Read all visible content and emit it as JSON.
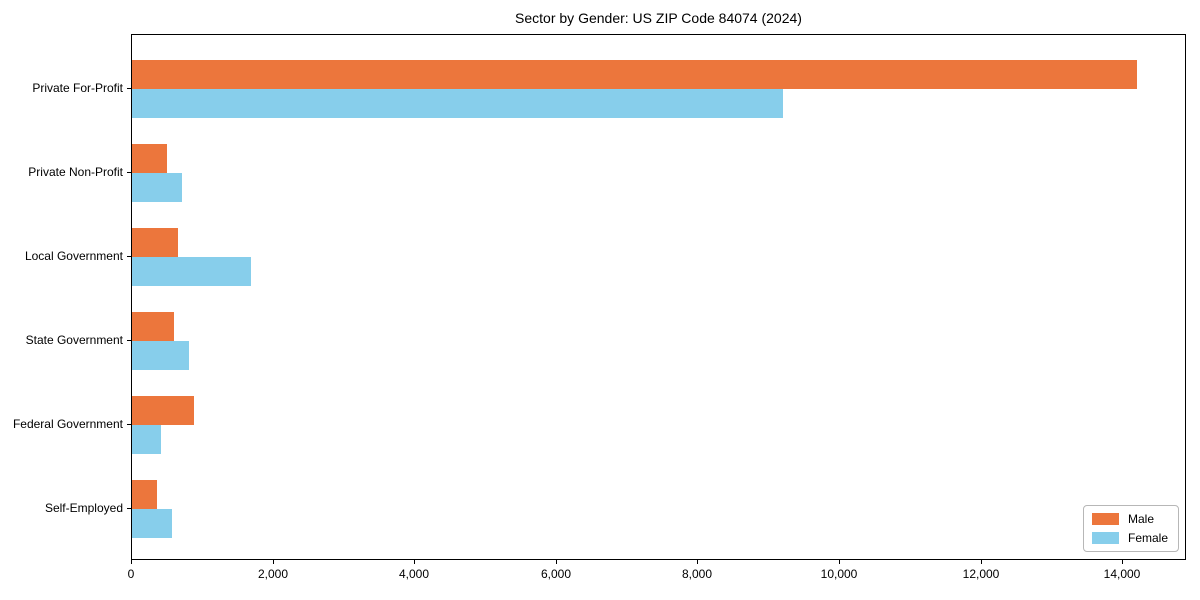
{
  "chart_data": {
    "type": "bar",
    "orientation": "horizontal",
    "title": "Sector by Gender: US ZIP Code 84074 (2024)",
    "xlabel": "",
    "ylabel": "",
    "grid": false,
    "legend_position": "lower right",
    "categories": [
      "Private For-Profit",
      "Private Non-Profit",
      "Local Government",
      "State Government",
      "Federal Government",
      "Self-Employed"
    ],
    "series": [
      {
        "name": "Male",
        "color": "#EC763C",
        "values": [
          14200,
          500,
          650,
          590,
          880,
          360
        ]
      },
      {
        "name": "Female",
        "color": "#87CEEB",
        "values": [
          9200,
          710,
          1680,
          810,
          410,
          560
        ]
      }
    ],
    "xlim": [
      0,
      14900
    ],
    "xticks": [
      {
        "v": 0,
        "label": "0"
      },
      {
        "v": 2000,
        "label": "2,000"
      },
      {
        "v": 4000,
        "label": "4,000"
      },
      {
        "v": 6000,
        "label": "6,000"
      },
      {
        "v": 8000,
        "label": "8,000"
      },
      {
        "v": 10000,
        "label": "10,000"
      },
      {
        "v": 12000,
        "label": "12,000"
      },
      {
        "v": 14000,
        "label": "14,000"
      }
    ]
  }
}
